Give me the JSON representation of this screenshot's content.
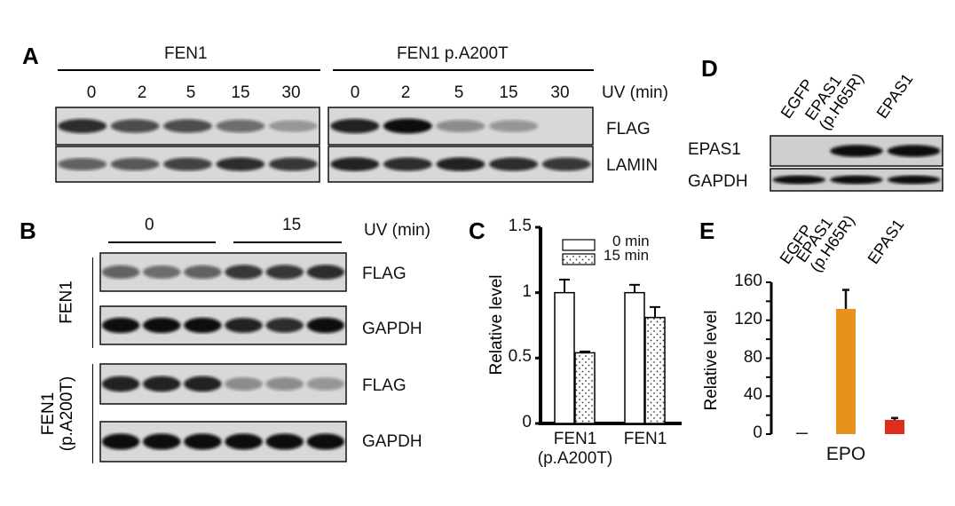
{
  "panels": {
    "a": "A",
    "b": "B",
    "c": "C",
    "d": "D",
    "e": "E"
  },
  "panel_a": {
    "groups": [
      "FEN1",
      "FEN1 p.A200T"
    ],
    "lanes_left": [
      "0",
      "2",
      "5",
      "15",
      "30"
    ],
    "lanes_right": [
      "0",
      "2",
      "5",
      "15",
      "30"
    ],
    "uv_label": "UV (min)",
    "rows": [
      "FLAG",
      "LAMIN"
    ],
    "flag_intensity_left": [
      0.85,
      0.7,
      0.7,
      0.55,
      0.3
    ],
    "flag_intensity_right": [
      0.9,
      1.0,
      0.4,
      0.35,
      0.0
    ],
    "lamin_intensity_left": [
      0.6,
      0.65,
      0.75,
      0.85,
      0.8
    ],
    "lamin_intensity_right": [
      0.9,
      0.85,
      0.9,
      0.85,
      0.8
    ]
  },
  "panel_b": {
    "times": [
      "0",
      "15"
    ],
    "uv_label": "UV (min)",
    "groups": [
      "FEN1",
      "FEN1\n(p.A200T)"
    ],
    "rows": [
      "FLAG",
      "GAPDH",
      "FLAG",
      "GAPDH"
    ]
  },
  "panel_d": {
    "lanes": [
      "EGFP",
      "EPAS1\n(p.H65R)",
      "EPAS1"
    ],
    "rows": [
      "EPAS1",
      "GAPDH"
    ]
  },
  "chart_data": [
    {
      "panel": "C",
      "type": "bar",
      "categories": [
        "FEN1\n(p.A200T)",
        "FEN1"
      ],
      "series": [
        {
          "name": "0 min",
          "values": [
            1.0,
            1.0
          ],
          "errors": [
            0.1,
            0.06
          ],
          "fill": "white"
        },
        {
          "name": "15 min",
          "values": [
            0.54,
            0.81
          ],
          "errors": [
            0.01,
            0.08
          ],
          "fill": "dotted"
        }
      ],
      "ylabel": "Relative level",
      "ylim": [
        0,
        1.5
      ],
      "yticks": [
        "0",
        "0.5",
        "1",
        "1.5"
      ],
      "legend": "top"
    },
    {
      "panel": "E",
      "type": "bar",
      "categories": [
        "EGFP",
        "EPAS1\n(p.H65R)",
        "EPAS1"
      ],
      "values": [
        1,
        132,
        15
      ],
      "errors": [
        0,
        20,
        2
      ],
      "colors": [
        "#222222",
        "#E8921E",
        "#E02E1E"
      ],
      "xlabel": "EPO",
      "ylabel": "Relative level",
      "ylim": [
        0,
        160
      ],
      "yticks": [
        "0",
        "40",
        "80",
        "120",
        "160"
      ]
    }
  ]
}
